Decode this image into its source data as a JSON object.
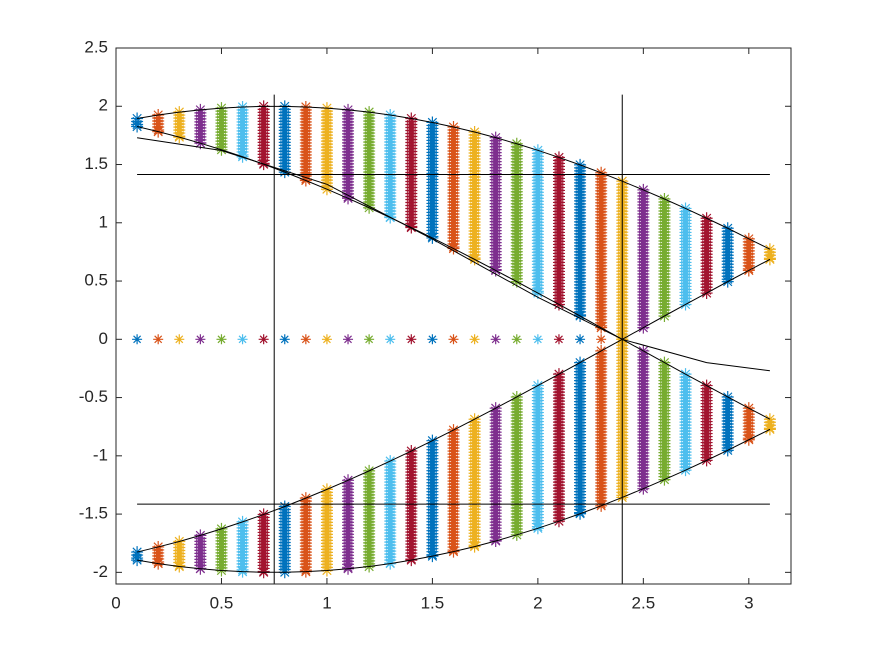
{
  "chart_data": {
    "type": "scatter",
    "x": [
      0.1,
      0.2,
      0.3,
      0.4,
      0.5,
      0.6,
      0.7,
      0.8,
      0.9,
      1.0,
      1.1,
      1.2,
      1.3,
      1.4,
      1.5,
      1.6,
      1.7,
      1.8,
      1.9,
      2.0,
      2.1,
      2.2,
      2.3,
      2.4,
      2.5,
      2.6,
      2.7,
      2.8,
      2.9,
      3.0,
      3.1
    ],
    "colors": [
      "#0072bd",
      "#d95319",
      "#edb120",
      "#7e2f8e",
      "#77ac30",
      "#4dbeee",
      "#a2142f"
    ],
    "bands": [
      {
        "low": [
          1.826,
          1.782,
          1.735,
          1.683,
          1.627,
          1.567,
          1.503,
          1.435,
          1.363,
          1.288,
          1.21,
          1.129,
          1.045,
          0.959,
          0.87,
          0.779,
          0.686,
          0.591,
          0.495,
          0.397,
          0.299,
          0.2,
          0.1,
          0,
          0.1,
          0.2,
          0.299,
          0.397,
          0.495,
          0.591,
          0.686
        ],
        "high": [
          1.895,
          1.925,
          1.95,
          1.969,
          1.984,
          1.994,
          1.999,
          1.999,
          1.994,
          1.984,
          1.969,
          1.95,
          1.925,
          1.895,
          1.861,
          1.822,
          1.779,
          1.731,
          1.678,
          1.622,
          1.561,
          1.497,
          1.429,
          1.357,
          1.282,
          1.204,
          1.123,
          1.039,
          0.953,
          0.862,
          0.773
        ]
      },
      {
        "low": [
          -1.895,
          -1.925,
          -1.95,
          -1.969,
          -1.984,
          -1.994,
          -1.999,
          -1.999,
          -1.994,
          -1.984,
          -1.969,
          -1.95,
          -1.925,
          -1.895,
          -1.861,
          -1.822,
          -1.779,
          -1.731,
          -1.678,
          -1.622,
          -1.561,
          -1.497,
          -1.429,
          -1.357,
          -1.282,
          -1.204,
          -1.123,
          -1.039,
          -0.953,
          -0.862,
          -0.773
        ],
        "high": [
          -1.826,
          -1.782,
          -1.735,
          -1.683,
          -1.627,
          -1.567,
          -1.503,
          -1.435,
          -1.363,
          -1.288,
          -1.21,
          -1.129,
          -1.045,
          -0.959,
          -0.87,
          -0.779,
          -0.686,
          -0.591,
          -0.495,
          -0.397,
          -0.299,
          -0.2,
          -0.1,
          0,
          -0.1,
          -0.2,
          -0.299,
          -0.397,
          -0.495,
          -0.591,
          -0.686
        ]
      }
    ],
    "zero_row": {
      "x": [
        0.1,
        0.2,
        0.3,
        0.4,
        0.5,
        0.6,
        0.7,
        0.8,
        0.9,
        1.0,
        1.1,
        1.2,
        1.3,
        1.4,
        1.5,
        1.6,
        1.7,
        1.8,
        1.9,
        2.0,
        2.1,
        2.2,
        2.3
      ],
      "values": [
        0,
        0,
        0,
        0,
        0,
        0,
        0,
        0,
        0,
        0,
        0,
        0,
        0,
        0,
        0,
        0,
        0,
        0,
        0,
        0,
        0,
        0,
        0
      ]
    },
    "curve": {
      "x": [
        0.1,
        0.5,
        1.0,
        1.5,
        2.0,
        2.4,
        2.8,
        3.1
      ],
      "values": [
        1.73,
        1.62,
        1.33,
        0.86,
        0.36,
        0,
        -0.2,
        -0.27
      ]
    },
    "hlines": [
      {
        "y": 1.414,
        "xlim": [
          0.1,
          3.1
        ]
      },
      {
        "y": -1.414,
        "xlim": [
          0.1,
          3.1
        ]
      }
    ],
    "vlines": [
      {
        "x": 0.75,
        "ylim": [
          -2.1,
          2.1
        ]
      },
      {
        "x": 2.4,
        "ylim": [
          -2.1,
          2.1
        ]
      }
    ],
    "xlim": [
      0,
      3.2
    ],
    "ylim": [
      -2.1,
      2.5
    ],
    "xticks": [
      0,
      0.5,
      1,
      1.5,
      2,
      2.5,
      3
    ],
    "yticks": [
      -2,
      -1.5,
      -1,
      -0.5,
      0,
      0.5,
      1,
      1.5,
      2,
      2.5
    ]
  }
}
